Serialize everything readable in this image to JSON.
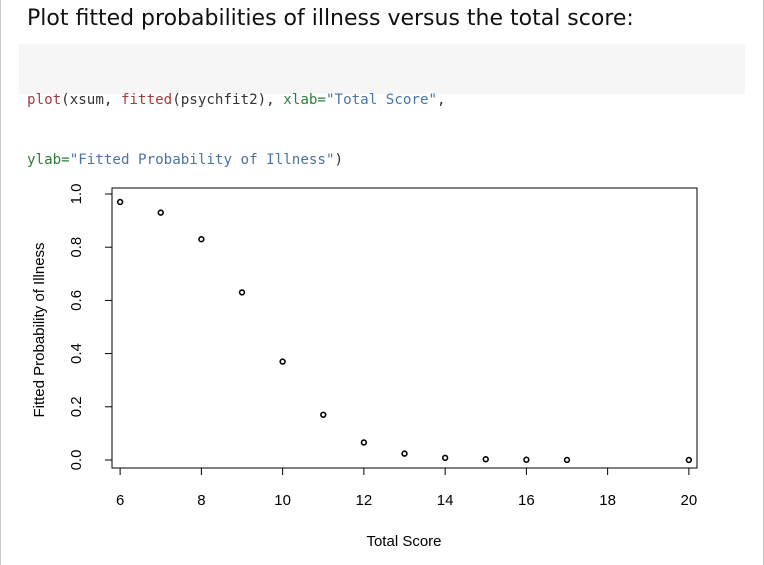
{
  "heading": "Plot fitted probabilities of illness versus the total score:",
  "code": {
    "line1": [
      {
        "t": "plot",
        "c": "fn"
      },
      {
        "t": "(xsum, ",
        "c": "plain"
      },
      {
        "t": "fitted",
        "c": "fn"
      },
      {
        "t": "(psychfit2), ",
        "c": "plain"
      },
      {
        "t": "xlab=",
        "c": "arg"
      },
      {
        "t": "\"Total Score\"",
        "c": "str"
      },
      {
        "t": ",",
        "c": "plain"
      }
    ],
    "line2": [
      {
        "t": "ylab=",
        "c": "arg"
      },
      {
        "t": "\"Fitted Probability of Illness\"",
        "c": "str"
      },
      {
        "t": ")",
        "c": "plain"
      }
    ]
  },
  "chart_data": {
    "type": "scatter",
    "title": "",
    "xlabel": "Total Score",
    "ylabel": "Fitted Probability of Illness",
    "xlim": [
      5.8,
      20.2
    ],
    "ylim": [
      0,
      1.0
    ],
    "xticks": [
      6,
      8,
      10,
      12,
      14,
      16,
      18,
      20
    ],
    "yticks": [
      0.0,
      0.2,
      0.4,
      0.6,
      0.8,
      1.0
    ],
    "ytick_labels": [
      "0.0",
      "0.2",
      "0.4",
      "0.6",
      "0.8",
      "1.0"
    ],
    "grid": false,
    "marker": "open-circle",
    "points": [
      {
        "x": 6,
        "y": 0.97
      },
      {
        "x": 7,
        "y": 0.93
      },
      {
        "x": 8,
        "y": 0.83
      },
      {
        "x": 9,
        "y": 0.63
      },
      {
        "x": 10,
        "y": 0.37
      },
      {
        "x": 11,
        "y": 0.17
      },
      {
        "x": 12,
        "y": 0.066
      },
      {
        "x": 13,
        "y": 0.024
      },
      {
        "x": 14,
        "y": 0.008
      },
      {
        "x": 15,
        "y": 0.003
      },
      {
        "x": 16,
        "y": 0.001
      },
      {
        "x": 17,
        "y": 0.0004
      },
      {
        "x": 20,
        "y": 0.0001
      }
    ]
  }
}
